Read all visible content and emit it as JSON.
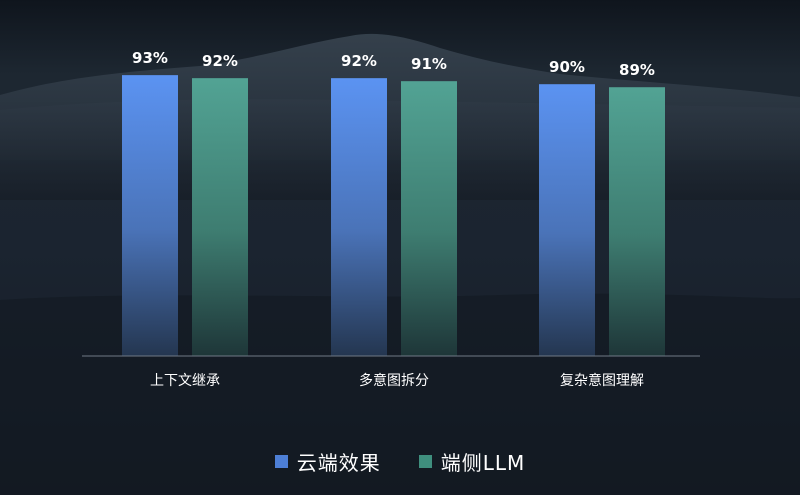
{
  "chart_data": {
    "type": "bar",
    "categories": [
      "上下文继承",
      "多意图拆分",
      "复杂意图理解"
    ],
    "series": [
      {
        "name": "云端效果",
        "values": [
          93,
          92,
          90
        ],
        "labels": [
          "93%",
          "92%",
          "90%"
        ]
      },
      {
        "name": "端侧LLM",
        "values": [
          92,
          91,
          89
        ],
        "labels": [
          "92%",
          "91%",
          "89%"
        ]
      }
    ],
    "ylim": [
      0,
      100
    ],
    "grid": false,
    "legend_position": "bottom-center",
    "colors": {
      "series_0_top": "#5b93f2",
      "series_0_bottom": "#243650",
      "series_1_top": "#52a394",
      "series_1_bottom": "#1e3638",
      "text": "#ffffff",
      "axis": "#6f7a86"
    }
  },
  "legend": {
    "items": [
      {
        "label": "云端效果",
        "color": "#4d7fd6"
      },
      {
        "label": "端侧LLM",
        "color": "#3f8f7e"
      }
    ]
  }
}
